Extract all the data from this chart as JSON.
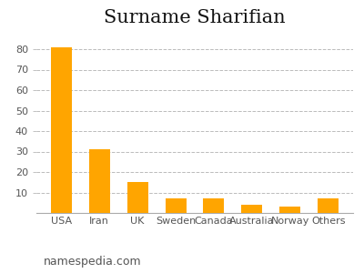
{
  "title": "Surname Sharifian",
  "categories": [
    "USA",
    "Iran",
    "UK",
    "Sweden",
    "Canada",
    "Australia",
    "Norway",
    "Others"
  ],
  "values": [
    81,
    31,
    15,
    7,
    7,
    4,
    3,
    7
  ],
  "bar_color": "#FFA500",
  "background_color": "#ffffff",
  "grid_color": "#bbbbbb",
  "ylim": [
    0,
    88
  ],
  "yticks": [
    10,
    20,
    30,
    40,
    50,
    60,
    70,
    80
  ],
  "title_fontsize": 15,
  "tick_fontsize": 8,
  "footer_text": "namespedia.com",
  "footer_fontsize": 9,
  "bar_width": 0.55
}
